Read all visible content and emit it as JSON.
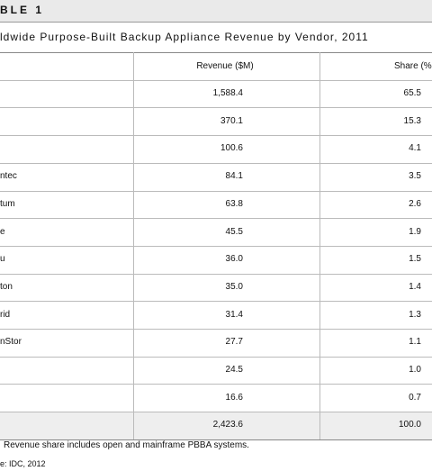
{
  "header": {
    "title": "BLE 1",
    "subtitle": "ldwide Purpose-Built Backup Appliance Revenue by Vendor, 2011"
  },
  "table": {
    "columns": [
      "Revenue ($M)",
      "Share (%"
    ],
    "rows": [
      {
        "revenue": "1,588.4",
        "share": "65.5"
      },
      {
        "revenue": "370.1",
        "share": "15.3"
      },
      {
        "revenue": "100.6",
        "share": "4.1"
      },
      {
        "vendor": "ntec",
        "revenue": "84.1",
        "share": "3.5"
      },
      {
        "vendor": "tum",
        "revenue": "63.8",
        "share": "2.6"
      },
      {
        "vendor": "e",
        "revenue": "45.5",
        "share": "1.9"
      },
      {
        "vendor": "u",
        "revenue": "36.0",
        "share": "1.5"
      },
      {
        "vendor": "ton",
        "revenue": "35.0",
        "share": "1.4"
      },
      {
        "vendor": "rid",
        "revenue": "31.4",
        "share": "1.3"
      },
      {
        "vendor": "nStor",
        "revenue": "27.7",
        "share": "1.1"
      },
      {
        "revenue": "24.5",
        "share": "1.0"
      },
      {
        "revenue": "16.6",
        "share": "0.7"
      },
      {
        "revenue": "2,423.6",
        "share": "100.0"
      }
    ]
  },
  "footer": {
    "note": "Revenue share includes open and mainframe PBBA systems.",
    "source": "e: IDC, 2012"
  }
}
